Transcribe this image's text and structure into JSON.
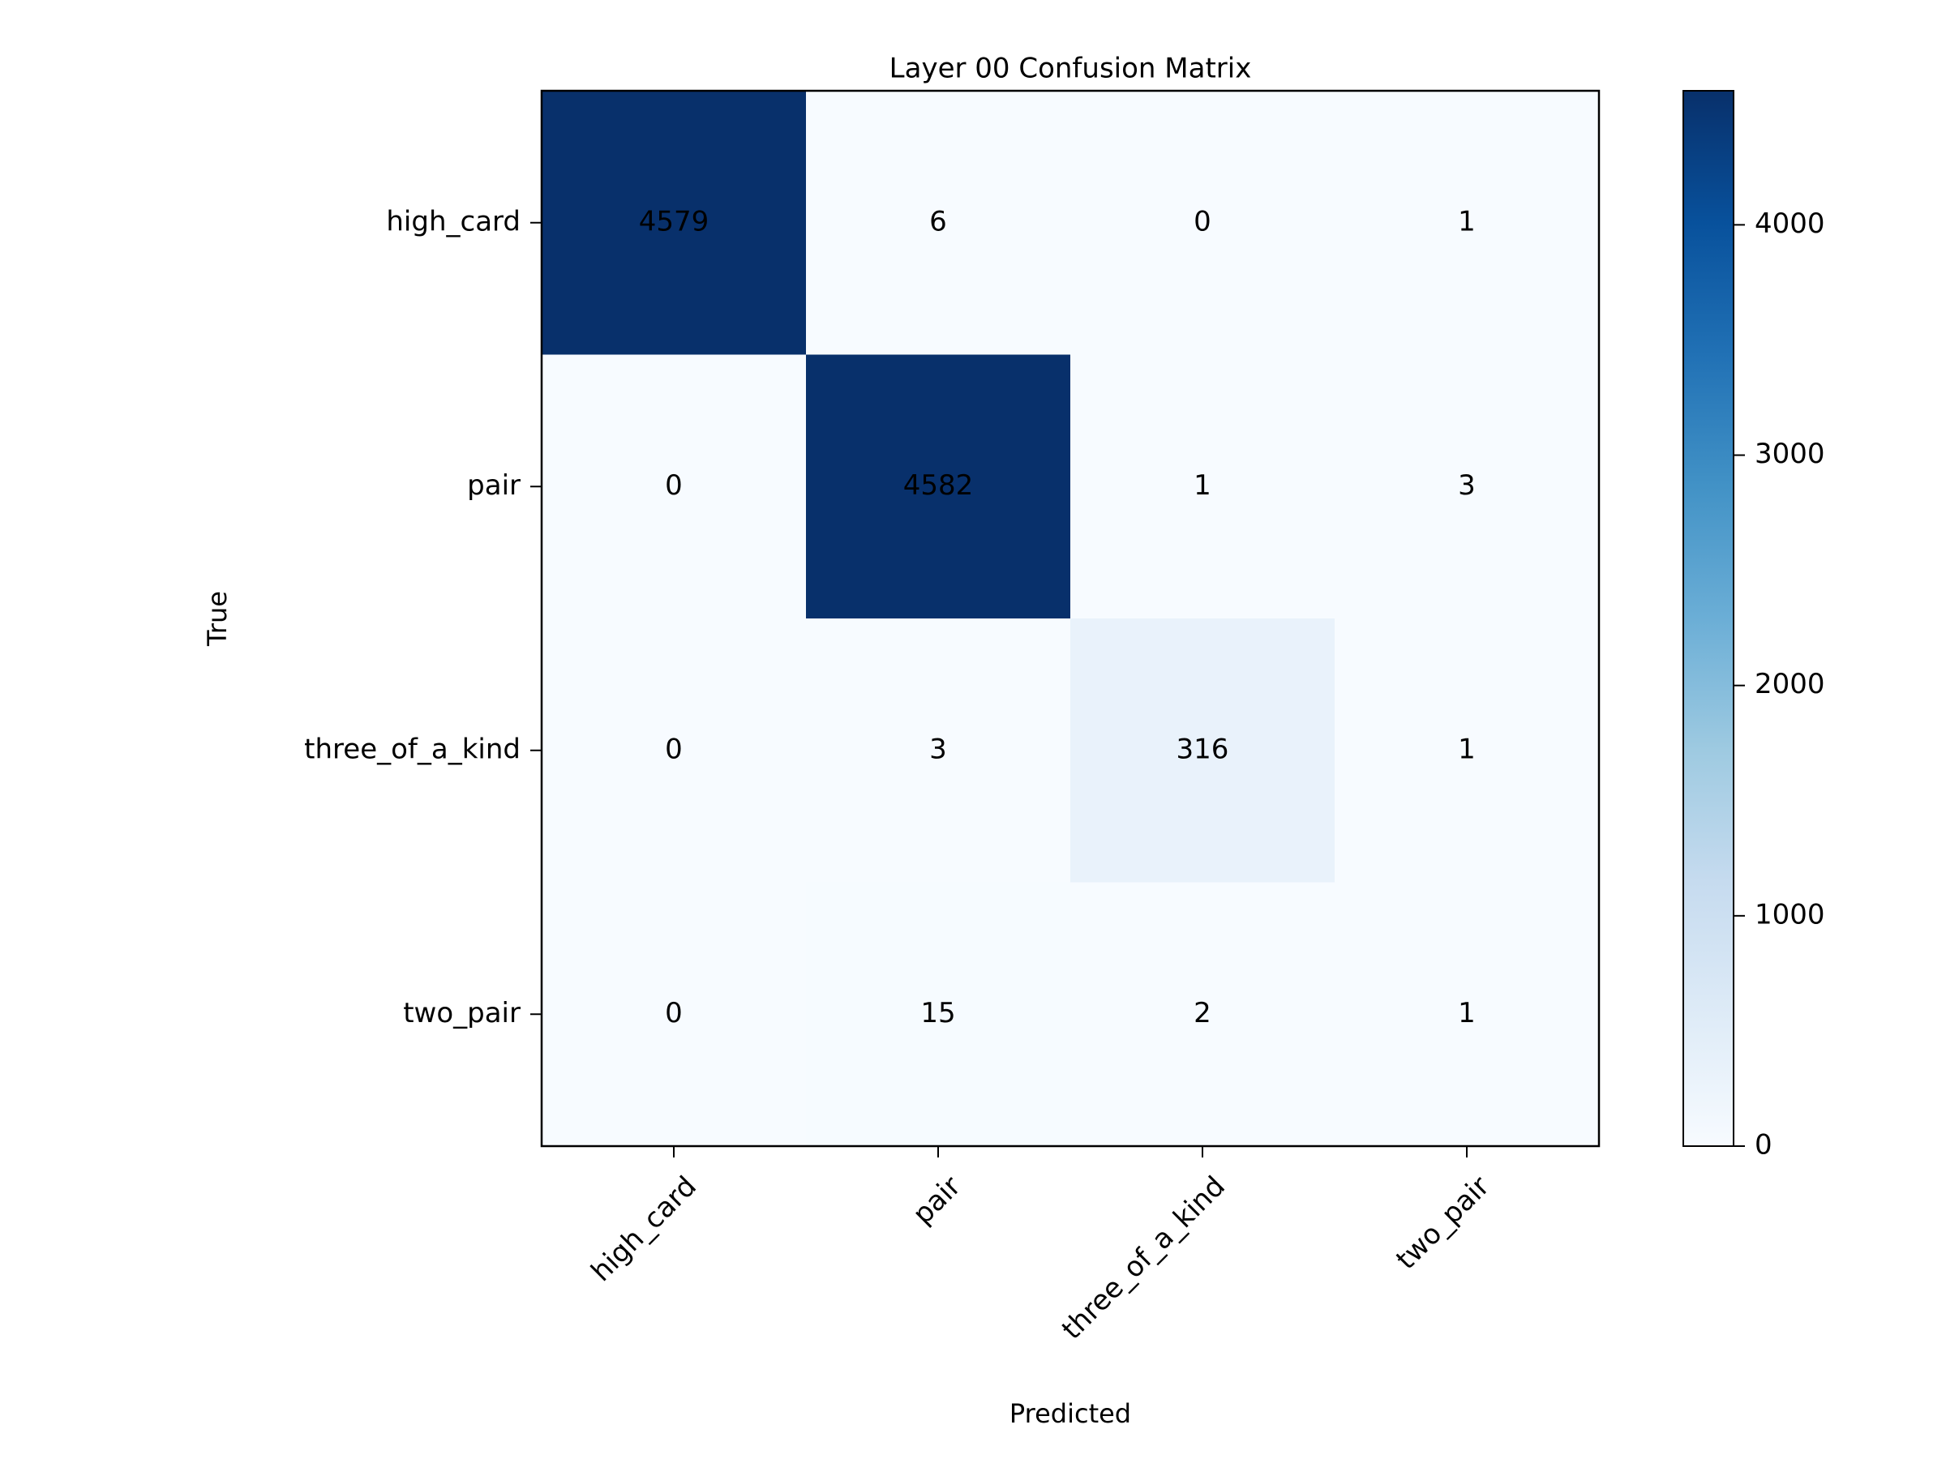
{
  "chart_data": {
    "type": "heatmap",
    "title": "Layer 00 Confusion Matrix",
    "xlabel": "Predicted",
    "ylabel": "True",
    "x_categories": [
      "high_card",
      "pair",
      "three_of_a_kind",
      "two_pair"
    ],
    "y_categories": [
      "high_card",
      "pair",
      "three_of_a_kind",
      "two_pair"
    ],
    "matrix": [
      [
        4579,
        6,
        0,
        1
      ],
      [
        0,
        4582,
        1,
        3
      ],
      [
        0,
        3,
        316,
        1
      ],
      [
        0,
        15,
        2,
        1
      ]
    ],
    "colormap": "Blues",
    "colorbar": {
      "min": 0,
      "max": 4582,
      "ticks": [
        0,
        1000,
        2000,
        3000,
        4000
      ],
      "tick_labels": [
        "0",
        "1000",
        "2000",
        "3000",
        "4000"
      ]
    },
    "grid": false,
    "legend": "colorbar-right"
  },
  "colors": {
    "cmap_stops": [
      "#f7fbff",
      "#deebf7",
      "#c6dbef",
      "#9ecae1",
      "#6baed6",
      "#4292c6",
      "#2171b5",
      "#08519c",
      "#08306b"
    ],
    "text": "#000000",
    "background": "#ffffff"
  }
}
